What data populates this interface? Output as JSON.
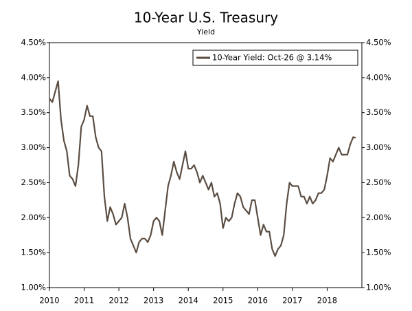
{
  "chart_data": {
    "type": "line",
    "title": "10-Year U.S. Treasury",
    "subtitle": "Yield",
    "x": [
      2010,
      2010.083,
      2010.167,
      2010.25,
      2010.333,
      2010.417,
      2010.5,
      2010.583,
      2010.667,
      2010.75,
      2010.833,
      2010.917,
      2011,
      2011.083,
      2011.167,
      2011.25,
      2011.333,
      2011.417,
      2011.5,
      2011.583,
      2011.667,
      2011.75,
      2011.833,
      2011.917,
      2012,
      2012.083,
      2012.167,
      2012.25,
      2012.333,
      2012.417,
      2012.5,
      2012.583,
      2012.667,
      2012.75,
      2012.833,
      2012.917,
      2013,
      2013.083,
      2013.167,
      2013.25,
      2013.333,
      2013.417,
      2013.5,
      2013.583,
      2013.667,
      2013.75,
      2013.833,
      2013.917,
      2014,
      2014.083,
      2014.167,
      2014.25,
      2014.333,
      2014.417,
      2014.5,
      2014.583,
      2014.667,
      2014.75,
      2014.833,
      2014.917,
      2015,
      2015.083,
      2015.167,
      2015.25,
      2015.333,
      2015.417,
      2015.5,
      2015.583,
      2015.667,
      2015.75,
      2015.833,
      2015.917,
      2016,
      2016.083,
      2016.167,
      2016.25,
      2016.333,
      2016.417,
      2016.5,
      2016.583,
      2016.667,
      2016.75,
      2016.833,
      2016.917,
      2017,
      2017.083,
      2017.167,
      2017.25,
      2017.333,
      2017.417,
      2017.5,
      2017.583,
      2017.667,
      2017.75,
      2017.833,
      2017.917,
      2018,
      2018.083,
      2018.167,
      2018.25,
      2018.333,
      2018.417,
      2018.5,
      2018.583,
      2018.667,
      2018.75,
      2018.82
    ],
    "series": [
      {
        "name": "10-Year Yield: Oct-26 @ 3.14%",
        "color": "#5b4d42",
        "values": [
          3.7,
          3.65,
          3.8,
          3.95,
          3.4,
          3.1,
          2.95,
          2.6,
          2.55,
          2.45,
          2.75,
          3.3,
          3.4,
          3.6,
          3.45,
          3.45,
          3.15,
          3.0,
          2.95,
          2.3,
          1.95,
          2.15,
          2.05,
          1.9,
          1.95,
          2.0,
          2.2,
          2.0,
          1.7,
          1.6,
          1.5,
          1.65,
          1.7,
          1.7,
          1.65,
          1.75,
          1.95,
          2.0,
          1.95,
          1.75,
          2.1,
          2.45,
          2.6,
          2.8,
          2.65,
          2.55,
          2.75,
          2.95,
          2.7,
          2.7,
          2.75,
          2.65,
          2.5,
          2.6,
          2.5,
          2.4,
          2.5,
          2.3,
          2.35,
          2.2,
          1.85,
          2.0,
          1.95,
          2.0,
          2.2,
          2.35,
          2.3,
          2.15,
          2.1,
          2.05,
          2.25,
          2.25,
          2.0,
          1.75,
          1.9,
          1.8,
          1.8,
          1.55,
          1.45,
          1.55,
          1.6,
          1.75,
          2.2,
          2.5,
          2.45,
          2.45,
          2.45,
          2.3,
          2.3,
          2.2,
          2.3,
          2.2,
          2.25,
          2.35,
          2.35,
          2.4,
          2.6,
          2.85,
          2.8,
          2.9,
          3.0,
          2.9,
          2.9,
          2.9,
          3.05,
          3.15,
          3.14
        ]
      }
    ],
    "xlim": [
      2010,
      2019
    ],
    "xticks": [
      2010,
      2011,
      2012,
      2013,
      2014,
      2015,
      2016,
      2017,
      2018
    ],
    "ylim": [
      1.0,
      4.5
    ],
    "yticks": [
      {
        "value": 1.0,
        "label": "1.00%"
      },
      {
        "value": 1.5,
        "label": "1.50%"
      },
      {
        "value": 2.0,
        "label": "2.00%"
      },
      {
        "value": 2.5,
        "label": "2.50%"
      },
      {
        "value": 3.0,
        "label": "3.00%"
      },
      {
        "value": 3.5,
        "label": "3.50%"
      },
      {
        "value": 4.0,
        "label": "4.00%"
      },
      {
        "value": 4.5,
        "label": "4.50%"
      }
    ],
    "y2lim": [
      1.0,
      4.5
    ],
    "y2ticks": [
      {
        "value": 1.0,
        "label": "1.00%"
      },
      {
        "value": 1.5,
        "label": "1.50%"
      },
      {
        "value": 2.0,
        "label": "2.00%"
      },
      {
        "value": 2.5,
        "label": "2.50%"
      },
      {
        "value": 3.0,
        "label": "3.00%"
      },
      {
        "value": 3.5,
        "label": "3.50%"
      },
      {
        "value": 4.0,
        "label": "4.00%"
      },
      {
        "value": 4.5,
        "label": "4.50%"
      }
    ],
    "legend": "upper right",
    "grid": false
  }
}
